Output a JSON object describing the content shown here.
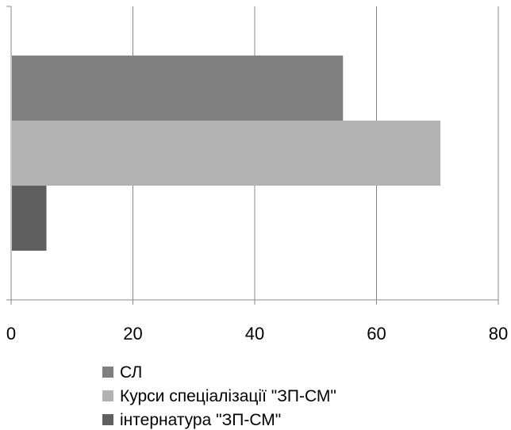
{
  "chart_data": {
    "type": "bar",
    "orientation": "horizontal",
    "xlim": [
      0,
      80
    ],
    "x_ticks": [
      "0",
      "20",
      "40",
      "60",
      "80"
    ],
    "grid": true,
    "legend_position": "bottom",
    "series": [
      {
        "name": "СЛ",
        "value": 54.5,
        "color": "#808080"
      },
      {
        "name": "Курси спеціалізації \"ЗП-СМ\"",
        "value": 70.5,
        "color": "#b2b2b2"
      },
      {
        "name": "інтернатура \"ЗП-СМ\"",
        "value": 5.8,
        "color": "#5f5f5f"
      }
    ]
  }
}
